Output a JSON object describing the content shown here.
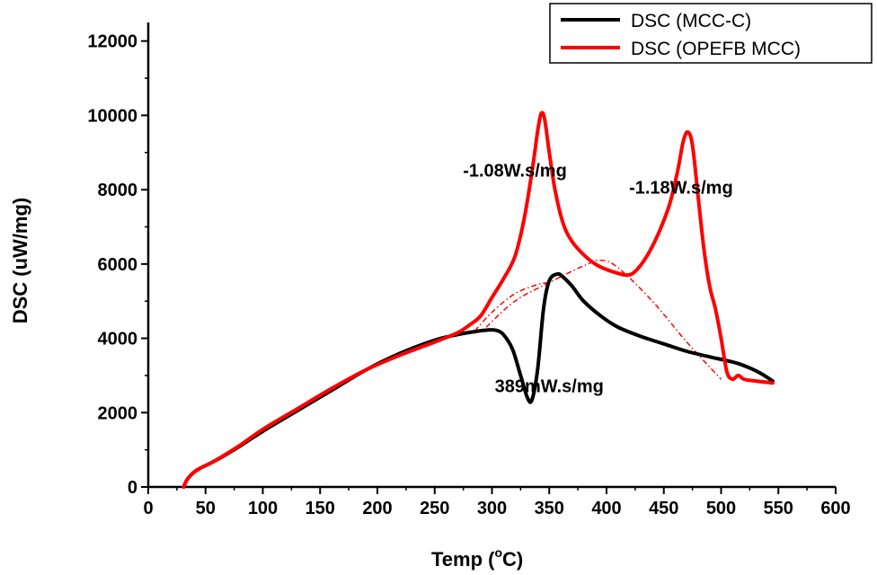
{
  "chart_data": {
    "type": "line",
    "title": "",
    "xlabel": "Temp (°C)",
    "xlabel_main": "Temp (",
    "xlabel_sup": "o",
    "xlabel_unit": "C)",
    "ylabel": "DSC (uW/mg)",
    "xlim": [
      0,
      600
    ],
    "ylim": [
      0,
      12500
    ],
    "xticks": [
      0,
      50,
      100,
      150,
      200,
      250,
      300,
      350,
      400,
      450,
      500,
      550,
      600
    ],
    "yticks": [
      0,
      2000,
      4000,
      6000,
      8000,
      10000,
      12000
    ],
    "legend_position": "top-right",
    "series": [
      {
        "name": "DSC (MCC-C)",
        "color": "#000000",
        "x": [
          31,
          33,
          36,
          40,
          45,
          55,
          65,
          80,
          100,
          130,
          160,
          190,
          220,
          250,
          270,
          285,
          295,
          303,
          310,
          318,
          325,
          331,
          335,
          340,
          345,
          350,
          357,
          362,
          370,
          380,
          395,
          410,
          430,
          450,
          470,
          490,
          505,
          515,
          525,
          535,
          545
        ],
        "y": [
          0,
          150,
          280,
          400,
          500,
          650,
          820,
          1100,
          1500,
          2050,
          2600,
          3150,
          3600,
          3950,
          4100,
          4180,
          4220,
          4220,
          4100,
          3700,
          3000,
          2400,
          2350,
          3200,
          4800,
          5550,
          5730,
          5650,
          5400,
          5000,
          4600,
          4300,
          4050,
          3850,
          3650,
          3500,
          3400,
          3320,
          3200,
          3050,
          2850
        ]
      },
      {
        "name": "DSC (OPEFB MCC)",
        "color": "#ff0000",
        "x": [
          31,
          33,
          36,
          40,
          45,
          55,
          65,
          80,
          100,
          130,
          160,
          190,
          220,
          250,
          270,
          280,
          290,
          300,
          310,
          320,
          328,
          335,
          340,
          343,
          346,
          350,
          355,
          362,
          370,
          380,
          390,
          400,
          410,
          418,
          425,
          435,
          445,
          455,
          462,
          467,
          471,
          475,
          480,
          485,
          490,
          495,
          500,
          505,
          510,
          515,
          520,
          530,
          545
        ],
        "y": [
          0,
          150,
          280,
          400,
          500,
          650,
          830,
          1120,
          1550,
          2100,
          2650,
          3150,
          3550,
          3900,
          4150,
          4350,
          4600,
          5100,
          5600,
          6200,
          7200,
          8500,
          9600,
          10050,
          9900,
          9000,
          8000,
          7100,
          6600,
          6250,
          6000,
          5850,
          5750,
          5700,
          5800,
          6200,
          6800,
          7600,
          8500,
          9300,
          9550,
          9200,
          7800,
          6400,
          5400,
          4800,
          4000,
          3100,
          2900,
          3000,
          2900,
          2850,
          2800
        ]
      }
    ],
    "baselines": [
      {
        "name": "baseline-peak-1",
        "color": "#ff0000",
        "x": [
          285,
          300,
          320,
          340,
          350
        ],
        "y": [
          4200,
          4700,
          5200,
          5450,
          5500
        ]
      },
      {
        "name": "baseline-peak-2",
        "color": "#ff0000",
        "x": [
          295,
          320,
          350,
          380,
          395,
          410,
          440,
          470,
          500
        ],
        "y": [
          4300,
          5000,
          5500,
          5950,
          6100,
          5900,
          5000,
          3900,
          2900
        ]
      }
    ],
    "annotations": [
      {
        "text": "-1.08W.s/mg",
        "x": 320,
        "y": 8350
      },
      {
        "text": "-1.18W.s/mg",
        "x": 465,
        "y": 7900
      },
      {
        "text": "389mW.s/mg",
        "x": 350,
        "y": 2550
      }
    ]
  }
}
